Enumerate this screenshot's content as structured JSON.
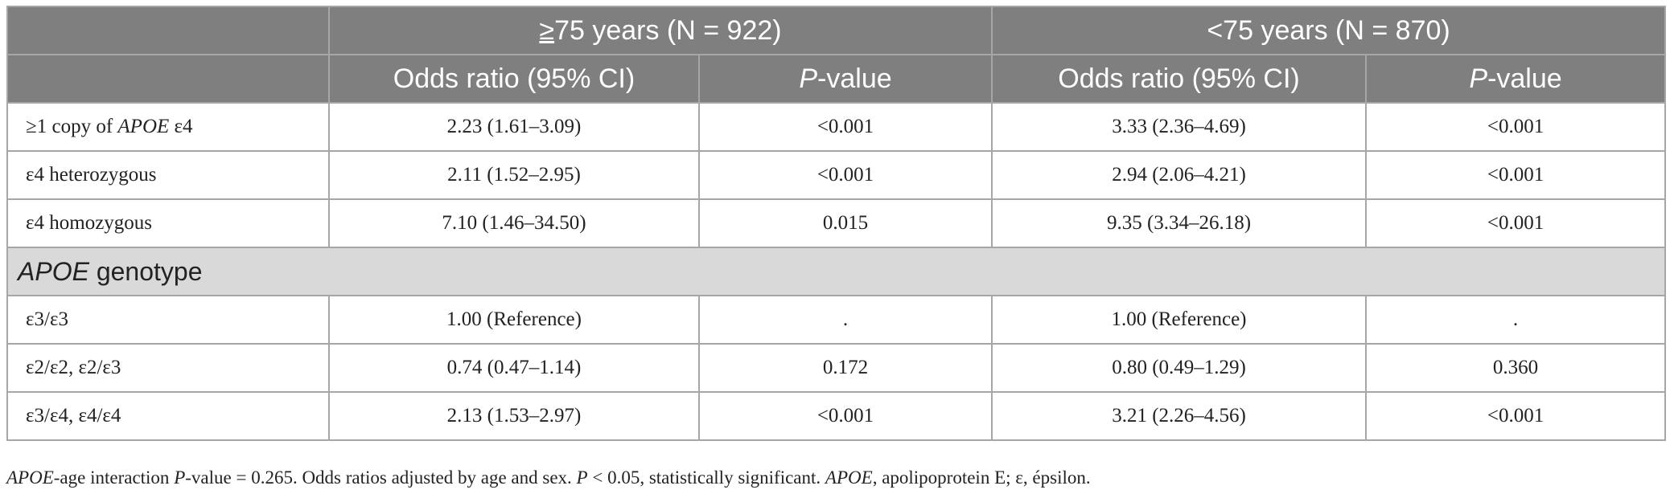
{
  "header": {
    "group1": {
      "ge_symbol": "≥",
      "text": "75 years (N = 922)"
    },
    "group2": {
      "text": "<75 years (N = 870)"
    },
    "or_label": "Odds ratio (95% CI)",
    "p_italic": "P",
    "p_rest": "-value"
  },
  "rows": [
    {
      "label_prefix": "≥1 copy of ",
      "label_italic": "APOE",
      "label_suffix": " ε4",
      "or1": "2.23 (1.61–3.09)",
      "p1": "<0.001",
      "or2": "3.33 (2.36–4.69)",
      "p2": "<0.001"
    },
    {
      "label": "ε4 heterozygous",
      "or1": "2.11 (1.52–2.95)",
      "p1": "<0.001",
      "or2": "2.94 (2.06–4.21)",
      "p2": "<0.001"
    },
    {
      "label": "ε4 homozygous",
      "or1": "7.10 (1.46–34.50)",
      "p1": "0.015",
      "or2": "9.35 (3.34–26.18)",
      "p2": "<0.001"
    }
  ],
  "section": {
    "italic": "APOE",
    "rest": " genotype"
  },
  "genotype_rows": [
    {
      "label": "ε3/ε3",
      "or1": "1.00 (Reference)",
      "p1": ".",
      "or2": "1.00 (Reference)",
      "p2": "."
    },
    {
      "label": "ε2/ε2, ε2/ε3",
      "or1": "0.74 (0.47–1.14)",
      "p1": "0.172",
      "or2": "0.80 (0.49–1.29)",
      "p2": "0.360"
    },
    {
      "label": "ε3/ε4, ε4/ε4",
      "or1": "2.13 (1.53–2.97)",
      "p1": "<0.001",
      "or2": "3.21 (2.26–4.56)",
      "p2": "<0.001"
    }
  ],
  "footnote": {
    "apoe1": "APOE",
    "t1": "-age interaction ",
    "p1": "P",
    "t2": "-value = 0.265. Odds ratios adjusted by age and sex. ",
    "p2": "P",
    "t3": " < 0.05, statistically significant. ",
    "apoe2": "APOE",
    "t4": ", apolipoprotein E; ε, épsilon."
  }
}
